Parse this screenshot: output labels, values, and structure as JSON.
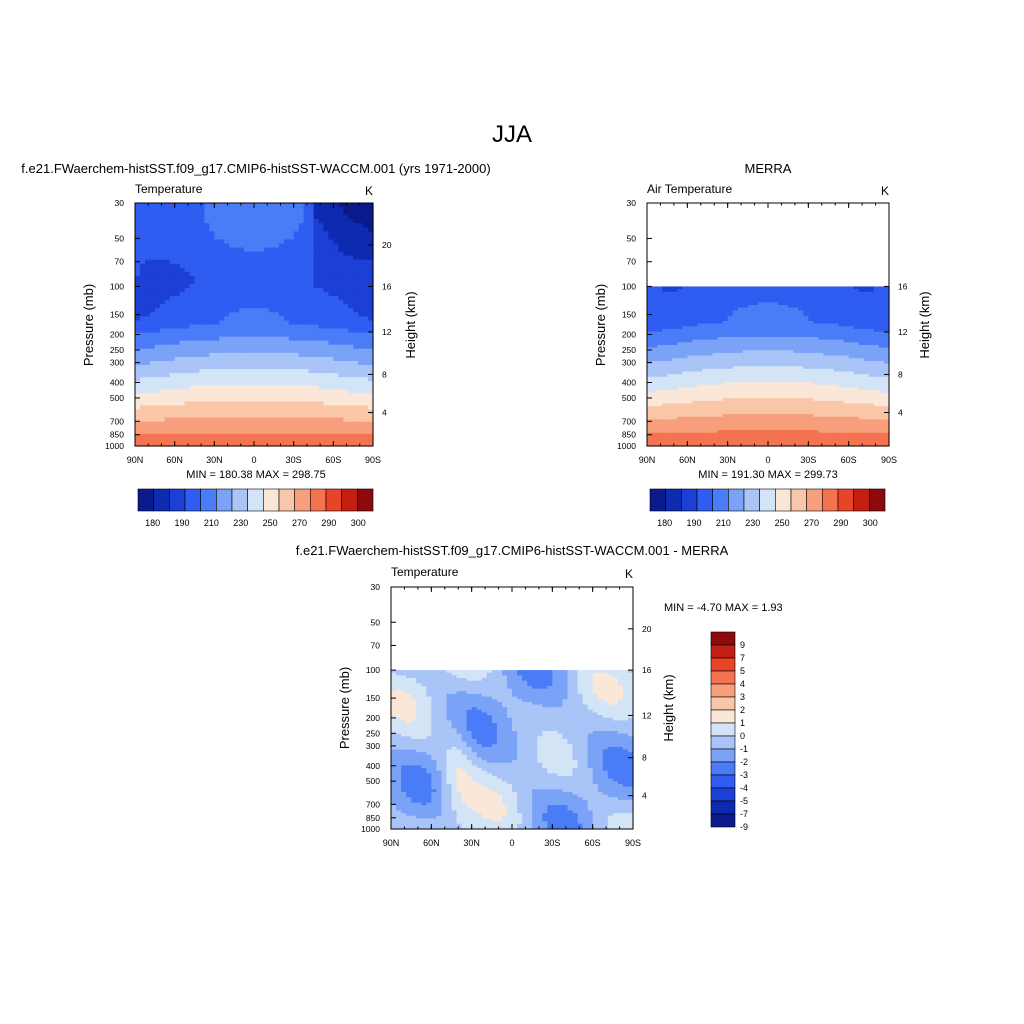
{
  "main_title": "JJA",
  "colors": {
    "cmap_abs": [
      "#0a1a8c",
      "#0d2ab0",
      "#1c3fd6",
      "#2f5df2",
      "#4a7cf7",
      "#7aa2f7",
      "#a9c4f7",
      "#d4e4f7",
      "#fbe7d7",
      "#f9c6a8",
      "#f79f7c",
      "#f47350",
      "#e9432a",
      "#c51f14",
      "#8b0a0a"
    ],
    "cmap_diff": [
      "#0a1a8c",
      "#0d2ab0",
      "#1c3fd6",
      "#2f5df2",
      "#4a7cf7",
      "#7aa2f7",
      "#a9c4f7",
      "#d4e4f7",
      "#fbe7d7",
      "#f9c6a8",
      "#f79f7c",
      "#f47350",
      "#e9432a",
      "#c51f14",
      "#8b0a0a"
    ]
  },
  "chart_data": [
    {
      "type": "heatmap",
      "title": "f.e21.FWaerchem-histSST.f09_g17.CMIP6-histSST-WACCM.001 (yrs 1971-2000)",
      "left_label": "Temperature",
      "right_label": "K",
      "ylabel": "Pressure (mb)",
      "y2label": "Height (km)",
      "x_ticks": [
        "90N",
        "60N",
        "30N",
        "0",
        "30S",
        "60S",
        "90S"
      ],
      "y_ticks": [
        30,
        50,
        70,
        100,
        150,
        200,
        250,
        300,
        400,
        500,
        700,
        850,
        1000
      ],
      "y2_ticks": [
        20,
        16,
        12,
        8,
        4
      ],
      "ylim": [
        1000,
        30
      ],
      "log_y": true,
      "stats": "MIN = 180.38  MAX = 298.75",
      "colorbar_labels": [
        "180",
        "190",
        "210",
        "230",
        "250",
        "270",
        "290",
        "300"
      ],
      "data_top_mb": 30,
      "range": [
        180.38,
        298.75
      ]
    },
    {
      "type": "heatmap",
      "title": "MERRA",
      "left_label": "Air Temperature",
      "right_label": "K",
      "ylabel": "Pressure (mb)",
      "y2label": "Height (km)",
      "x_ticks": [
        "90N",
        "60N",
        "30N",
        "0",
        "30S",
        "60S",
        "90S"
      ],
      "y_ticks": [
        30,
        50,
        70,
        100,
        150,
        200,
        250,
        300,
        400,
        500,
        700,
        850,
        1000
      ],
      "y2_ticks": [
        16,
        12,
        8,
        4
      ],
      "ylim": [
        1000,
        30
      ],
      "log_y": true,
      "stats": "MIN = 191.30  MAX = 299.73",
      "colorbar_labels": [
        "180",
        "190",
        "210",
        "230",
        "250",
        "270",
        "290",
        "300"
      ],
      "data_top_mb": 100,
      "range": [
        191.3,
        299.73
      ]
    },
    {
      "type": "heatmap",
      "title": "f.e21.FWaerchem-histSST.f09_g17.CMIP6-histSST-WACCM.001 - MERRA",
      "left_label": "Temperature",
      "right_label": "K",
      "ylabel": "Pressure (mb)",
      "y2label": "Height (km)",
      "x_ticks": [
        "90N",
        "60N",
        "30N",
        "0",
        "30S",
        "60S",
        "90S"
      ],
      "y_ticks": [
        30,
        50,
        70,
        100,
        150,
        200,
        250,
        300,
        400,
        500,
        700,
        850,
        1000
      ],
      "y2_ticks": [
        20,
        16,
        12,
        8,
        4
      ],
      "ylim": [
        1000,
        30
      ],
      "log_y": true,
      "stats": "MIN =  -4.70  MAX =   1.93",
      "colorbar_labels": [
        "9",
        "7",
        "5",
        "4",
        "3",
        "2",
        "1",
        "0",
        "-1",
        "-2",
        "-3",
        "-4",
        "-5",
        "-7",
        "-9"
      ],
      "data_top_mb": 100,
      "range": [
        -4.7,
        1.93
      ]
    }
  ]
}
